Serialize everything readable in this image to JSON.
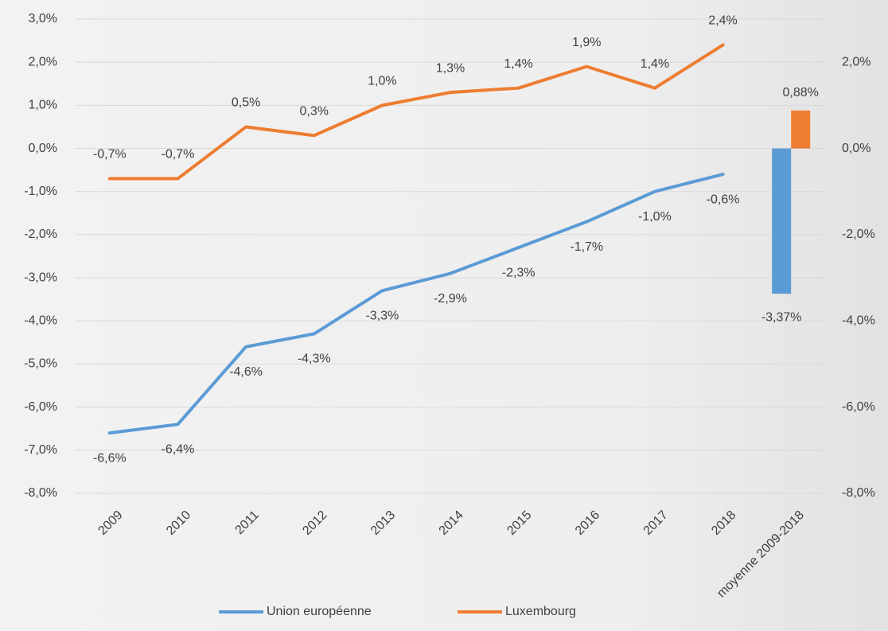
{
  "chart_data": {
    "type": "line",
    "categories": [
      "2009",
      "2010",
      "2011",
      "2012",
      "2013",
      "2014",
      "2015",
      "2016",
      "2017",
      "2018",
      "moyenne 2009-2018"
    ],
    "series": [
      {
        "type": "line",
        "name": "Union européenne",
        "color": "#5b9bd5",
        "values": [
          -6.6,
          -6.4,
          -4.6,
          -4.3,
          -3.3,
          -2.9,
          -2.3,
          -1.7,
          -1.0,
          -0.6,
          null
        ],
        "value_labels": [
          "-6,6%",
          "-6,4%",
          "-4,6%",
          "-4,3%",
          "-3,3%",
          "-2,9%",
          "-2,3%",
          "-1,7%",
          "-1,0%",
          "-0,6%",
          null
        ]
      },
      {
        "type": "line",
        "name": "Luxembourg",
        "color": "#ed7d31",
        "values": [
          -0.7,
          -0.7,
          0.5,
          0.3,
          1.0,
          1.3,
          1.4,
          1.9,
          1.4,
          2.4,
          null
        ],
        "value_labels": [
          "-0,7%",
          "-0,7%",
          "0,5%",
          "0,3%",
          "1,0%",
          "1,3%",
          "1,4%",
          "1,9%",
          "1,4%",
          "2,4%",
          null
        ]
      },
      {
        "type": "bar",
        "axis": "y2",
        "color": "#5b9bd5",
        "values": [
          null,
          null,
          null,
          null,
          null,
          null,
          null,
          null,
          null,
          null,
          -3.37
        ],
        "value_labels": [
          null,
          null,
          null,
          null,
          null,
          null,
          null,
          null,
          null,
          null,
          "-3,37%"
        ]
      },
      {
        "type": "bar",
        "axis": "y2",
        "color": "#ed7d31",
        "values": [
          null,
          null,
          null,
          null,
          null,
          null,
          null,
          null,
          null,
          null,
          0.88
        ],
        "value_labels": [
          null,
          null,
          null,
          null,
          null,
          null,
          null,
          null,
          null,
          null,
          "0,88%"
        ]
      }
    ],
    "ylim": [
      -8,
      3
    ],
    "yticks": [
      {
        "value": -8,
        "label": "-8,0%"
      },
      {
        "value": -7,
        "label": "-7,0%"
      },
      {
        "value": -6,
        "label": "-6,0%"
      },
      {
        "value": -5,
        "label": "-5,0%"
      },
      {
        "value": -4,
        "label": "-4,0%"
      },
      {
        "value": -3,
        "label": "-3,0%"
      },
      {
        "value": -2,
        "label": "-2,0%"
      },
      {
        "value": -1,
        "label": "-1,0%"
      },
      {
        "value": 0,
        "label": "0,0%"
      },
      {
        "value": 1,
        "label": "1,0%"
      },
      {
        "value": 2,
        "label": "2,0%"
      },
      {
        "value": 3,
        "label": "3,0%"
      }
    ],
    "y2lim": [
      -8,
      3
    ],
    "y2ticks": [
      {
        "value": -8,
        "label": "-8,0%"
      },
      {
        "value": -6,
        "label": "-6,0%"
      },
      {
        "value": -4,
        "label": "-4,0%"
      },
      {
        "value": -2,
        "label": "-2,0%"
      },
      {
        "value": 0,
        "label": "0,0%"
      },
      {
        "value": 2,
        "label": "2,0%"
      }
    ],
    "grid": true,
    "legend": "bottom"
  }
}
